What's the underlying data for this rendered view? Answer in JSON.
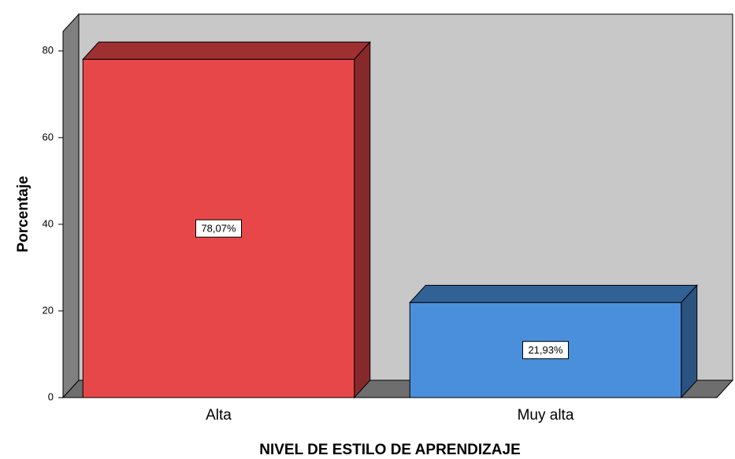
{
  "chart_data": {
    "type": "bar3d",
    "x_label": "NIVEL DE ESTILO DE APRENDIZAJE",
    "y_label": "Porcentaje",
    "categories": [
      "Alta",
      "Muy alta"
    ],
    "values": [
      78.07,
      21.93
    ],
    "value_labels": [
      "78,07%",
      "21,93%"
    ],
    "colors": [
      "#e8474a",
      "#4a8fdc"
    ],
    "ylim": [
      0,
      84.5
    ],
    "yticks": [
      0,
      20,
      40,
      60,
      80
    ]
  }
}
